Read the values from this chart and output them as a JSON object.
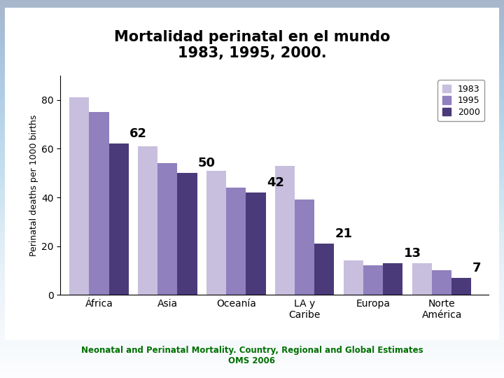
{
  "title": "Mortalidad perinatal en el mundo\n1983, 1995, 2000.",
  "ylabel": "Perinatal deaths per 1000 births",
  "categories": [
    "África",
    "Asia",
    "Oceanía",
    "LA y\nCaribe",
    "Europa",
    "Norte\nAmérica"
  ],
  "years": [
    "1983",
    "1995",
    "2000"
  ],
  "values": {
    "1983": [
      81,
      61,
      51,
      53,
      14,
      13
    ],
    "1995": [
      75,
      54,
      44,
      39,
      12,
      10
    ],
    "2000": [
      62,
      50,
      42,
      21,
      13,
      7
    ]
  },
  "annotations": [
    62,
    50,
    42,
    21,
    13,
    7
  ],
  "colors": {
    "1983": "#c8bede",
    "1995": "#9080be",
    "2000": "#4a3a7a"
  },
  "ylim": [
    0,
    90
  ],
  "yticks": [
    0,
    20,
    40,
    60,
    80
  ],
  "bg_top_color": "#b0c0d8",
  "bg_bottom_color": "#c8d4e4",
  "chart_bg": "#ffffff",
  "title_fontsize": 15,
  "tick_fontsize": 10,
  "label_fontsize": 9,
  "annotation_fontsize": 13,
  "footer": "Neonatal and Perinatal Mortality. Country, Regional and Global Estimates\nOMS 2006",
  "footer_color": "#007000",
  "footer_fontsize": 8.5
}
